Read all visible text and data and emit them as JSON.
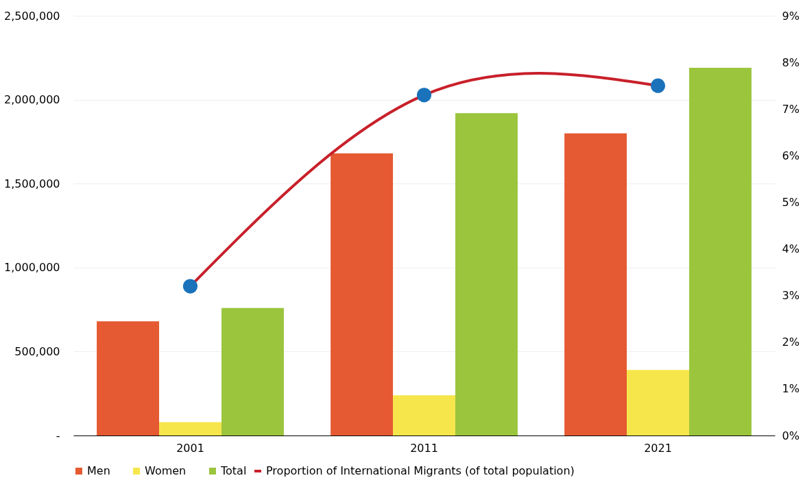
{
  "chart_data": {
    "type": "bar",
    "categories": [
      "2001",
      "2011",
      "2021"
    ],
    "series": [
      {
        "name": "Men",
        "color": "#e55a32",
        "values": [
          680000,
          1680000,
          1800000
        ]
      },
      {
        "name": "Women",
        "color": "#f7e64b",
        "values": [
          80000,
          240000,
          390000
        ]
      },
      {
        "name": "Total",
        "color": "#9bc53d",
        "values": [
          760000,
          1920000,
          2190000
        ]
      },
      {
        "name": "Proportion of International Migrants (of total population)",
        "type": "line",
        "axis": "y2",
        "color": "#c8202a",
        "colors": [
          "#1a72bb",
          "#1a72bb",
          "#1a72bb"
        ],
        "marker": "circle",
        "values": [
          3.2,
          7.3,
          7.5
        ]
      }
    ],
    "ylim": [
      0,
      2500000
    ],
    "yticks": [
      {
        "value": 0,
        "label": "-"
      },
      {
        "value": 500000,
        "label": "500,000"
      },
      {
        "value": 1000000,
        "label": "1,000,000"
      },
      {
        "value": 1500000,
        "label": "1,500,000"
      },
      {
        "value": 2000000,
        "label": "2,000,000"
      },
      {
        "value": 2500000,
        "label": "2,500,000"
      }
    ],
    "y2lim": [
      0,
      9
    ],
    "y2ticks": [
      {
        "value": 0,
        "label": "0%"
      },
      {
        "value": 1,
        "label": "1%"
      },
      {
        "value": 2,
        "label": "2%"
      },
      {
        "value": 3,
        "label": "3%"
      },
      {
        "value": 4,
        "label": "4%"
      },
      {
        "value": 5,
        "label": "5%"
      },
      {
        "value": 6,
        "label": "6%"
      },
      {
        "value": 7,
        "label": "7%"
      },
      {
        "value": 8,
        "label": "8%"
      },
      {
        "value": 9,
        "label": "9%"
      }
    ],
    "grid": "y",
    "legend": "bottom"
  }
}
